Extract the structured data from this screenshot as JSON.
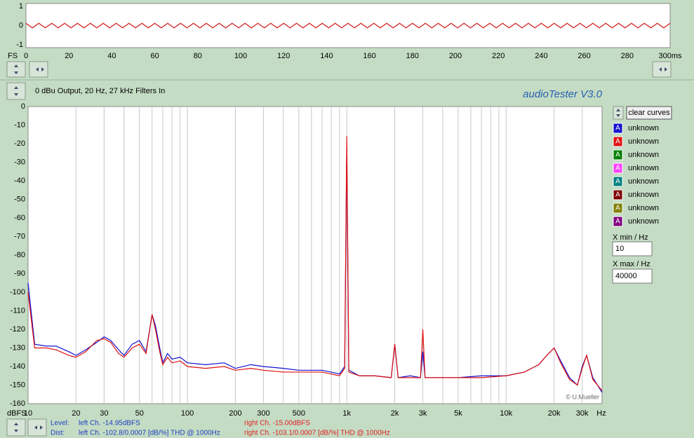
{
  "chart_data": [
    {
      "type": "line",
      "ylabel": "FS",
      "x": [
        0,
        3,
        6,
        9,
        12,
        15,
        18,
        21,
        24,
        27,
        30,
        33,
        36,
        39,
        42,
        45,
        48,
        51,
        54,
        57,
        60,
        63,
        66,
        69,
        72,
        75,
        78,
        81,
        84,
        87,
        90,
        93,
        96,
        99,
        102,
        105,
        108,
        111,
        114,
        117,
        120,
        123,
        126,
        129,
        132,
        135,
        138,
        141,
        144,
        147,
        150,
        153,
        156,
        159,
        162,
        165,
        168,
        171,
        174,
        177,
        180,
        183,
        186,
        189,
        192,
        195,
        198,
        201,
        204,
        207,
        210,
        213,
        216,
        219,
        222,
        225,
        228,
        231,
        234,
        237,
        240,
        243,
        246,
        249,
        252,
        255,
        258,
        261,
        264,
        267,
        270,
        273,
        276,
        279,
        282,
        285,
        288,
        291,
        294,
        297,
        300
      ],
      "series": [
        {
          "color": "#d01818",
          "values": [
            0.12,
            -0.12,
            0.12,
            -0.12,
            0.12,
            -0.12,
            0.12,
            -0.12,
            0.12,
            -0.12,
            0.12,
            -0.12,
            0.12,
            -0.12,
            0.12,
            -0.12,
            0.12,
            -0.12,
            0.12,
            -0.12,
            0.12,
            -0.12,
            0.12,
            -0.12,
            0.12,
            -0.12,
            0.12,
            -0.12,
            0.12,
            -0.12,
            0.12,
            -0.12,
            0.12,
            -0.12,
            0.12,
            -0.12,
            0.12,
            -0.12,
            0.12,
            -0.12,
            0.12,
            -0.12,
            0.12,
            -0.12,
            0.12,
            -0.12,
            0.12,
            -0.12,
            0.12,
            -0.12,
            0.12,
            -0.12,
            0.12,
            -0.12,
            0.12,
            -0.12,
            0.12,
            -0.12,
            0.12,
            -0.12,
            0.12,
            -0.12,
            0.12,
            -0.12,
            0.12,
            -0.12,
            0.12,
            -0.12,
            0.12,
            -0.12,
            0.12,
            -0.12,
            0.12,
            -0.12,
            0.12,
            -0.12,
            0.12,
            -0.12,
            0.12,
            -0.12,
            0.12,
            -0.12,
            0.12,
            -0.12,
            0.12,
            -0.12,
            0.12,
            -0.12,
            0.12,
            -0.12,
            0.12,
            -0.12,
            0.12,
            -0.12,
            0.12,
            -0.12,
            0.12,
            -0.12,
            0.12,
            -0.12,
            0.12
          ]
        }
      ],
      "xlim": [
        0,
        300
      ],
      "xticks": [
        0,
        20,
        40,
        60,
        80,
        100,
        120,
        140,
        160,
        180,
        200,
        220,
        240,
        260,
        280,
        {
          "value": 300,
          "label": "300ms"
        }
      ],
      "ylim": [
        -1.15,
        1.15
      ],
      "yticks": [
        1,
        0,
        -1
      ]
    },
    {
      "type": "line",
      "xscale": "log",
      "title": "0 dBu Output, 20 Hz, 27 kHz Filters In",
      "xlabel": "Hz",
      "ylabel": "dBFS",
      "x": [
        10,
        11,
        13,
        15,
        18,
        20,
        23,
        27,
        30,
        33,
        37,
        40,
        45,
        50,
        55,
        60,
        63,
        67,
        70,
        75,
        80,
        90,
        100,
        130,
        170,
        200,
        250,
        300,
        400,
        500,
        700,
        900,
        970,
        1000,
        1030,
        1200,
        1500,
        1900,
        2000,
        2100,
        2500,
        2900,
        3000,
        3100,
        4000,
        5000,
        7000,
        10000,
        13000,
        16000,
        18000,
        20000,
        22000,
        25000,
        28000,
        30000,
        32000,
        35000,
        40000
      ],
      "series": [
        {
          "name": "unknown",
          "color": "#1010d0",
          "values": [
            -95,
            -128,
            -129,
            -129,
            -132,
            -134,
            -131,
            -127,
            -124,
            -126,
            -131,
            -134,
            -128,
            -126,
            -132,
            -112,
            -118,
            -130,
            -138,
            -133,
            -136,
            -135,
            -138,
            -139,
            -138,
            -141,
            -139,
            -140,
            -141,
            -142,
            -142,
            -144,
            -140,
            -22,
            -142,
            -145,
            -145,
            -146,
            -128,
            -146,
            -145,
            -146,
            -132,
            -146,
            -146,
            -146,
            -145,
            -145,
            -143,
            -139,
            -134,
            -130,
            -137,
            -146,
            -150,
            -140,
            -134,
            -146,
            -154
          ]
        },
        {
          "name": "unknown",
          "color": "#e01010",
          "values": [
            -100,
            -130,
            -130,
            -131,
            -134,
            -135,
            -132,
            -126,
            -125,
            -127,
            -133,
            -135,
            -130,
            -128,
            -133,
            -112,
            -120,
            -132,
            -139,
            -135,
            -138,
            -137,
            -140,
            -141,
            -140,
            -142,
            -141,
            -142,
            -143,
            -143,
            -143,
            -145,
            -141,
            -16,
            -143,
            -145,
            -145,
            -146,
            -128,
            -146,
            -146,
            -146,
            -120,
            -146,
            -146,
            -146,
            -146,
            -145,
            -143,
            -139,
            -134,
            -130,
            -138,
            -147,
            -150,
            -141,
            -134,
            -147,
            -153
          ]
        }
      ],
      "xlim": [
        10,
        40000
      ],
      "xticks": [
        10,
        20,
        30,
        50,
        100,
        200,
        300,
        500,
        {
          "value": 1000,
          "label": "1k"
        },
        {
          "value": 2000,
          "label": "2k"
        },
        {
          "value": 3000,
          "label": "3k"
        },
        {
          "value": 5000,
          "label": "5k"
        },
        {
          "value": 10000,
          "label": "10k"
        },
        {
          "value": 20000,
          "label": "20k"
        },
        {
          "value": 30000,
          "label": "30k"
        }
      ],
      "xgrid": [
        20,
        30,
        40,
        50,
        60,
        70,
        80,
        90,
        100,
        200,
        300,
        400,
        500,
        600,
        700,
        800,
        900,
        1000,
        2000,
        3000,
        4000,
        5000,
        6000,
        7000,
        8000,
        9000,
        10000,
        20000,
        30000
      ],
      "ylim": [
        -160,
        0
      ],
      "yticks": [
        0,
        -10,
        -20,
        -30,
        -40,
        -50,
        -60,
        -70,
        -80,
        -90,
        -100,
        -110,
        -120,
        -130,
        -140,
        -150,
        -160
      ]
    }
  ],
  "ui": {
    "app": "audioTester  V3.0",
    "clear": "clear curves",
    "marker": "A",
    "extra_curves": [
      {
        "name": "unknown",
        "color": "#008000"
      },
      {
        "name": "unknown",
        "color": "#ff40ff"
      },
      {
        "name": "unknown",
        "color": "#008080"
      },
      {
        "name": "unknown",
        "color": "#800000"
      },
      {
        "name": "unknown",
        "color": "#808000"
      },
      {
        "name": "unknown",
        "color": "#800080"
      }
    ],
    "xmin_label": "X min / Hz",
    "xmax_label": "X max / Hz",
    "credit": "© U.Mueller",
    "level": "Level:",
    "level_left": "left Ch. -14.95dBFS",
    "level_right": "right Ch. -15.00dBFS",
    "dist": "Dist:",
    "dist_left": "left Ch. -102.8/0.0007 [dB/%] THD @ 1000Hz",
    "dist_right": "right Ch. -103.1/0.0007 [dB/%] THD @ 1000Hz"
  }
}
